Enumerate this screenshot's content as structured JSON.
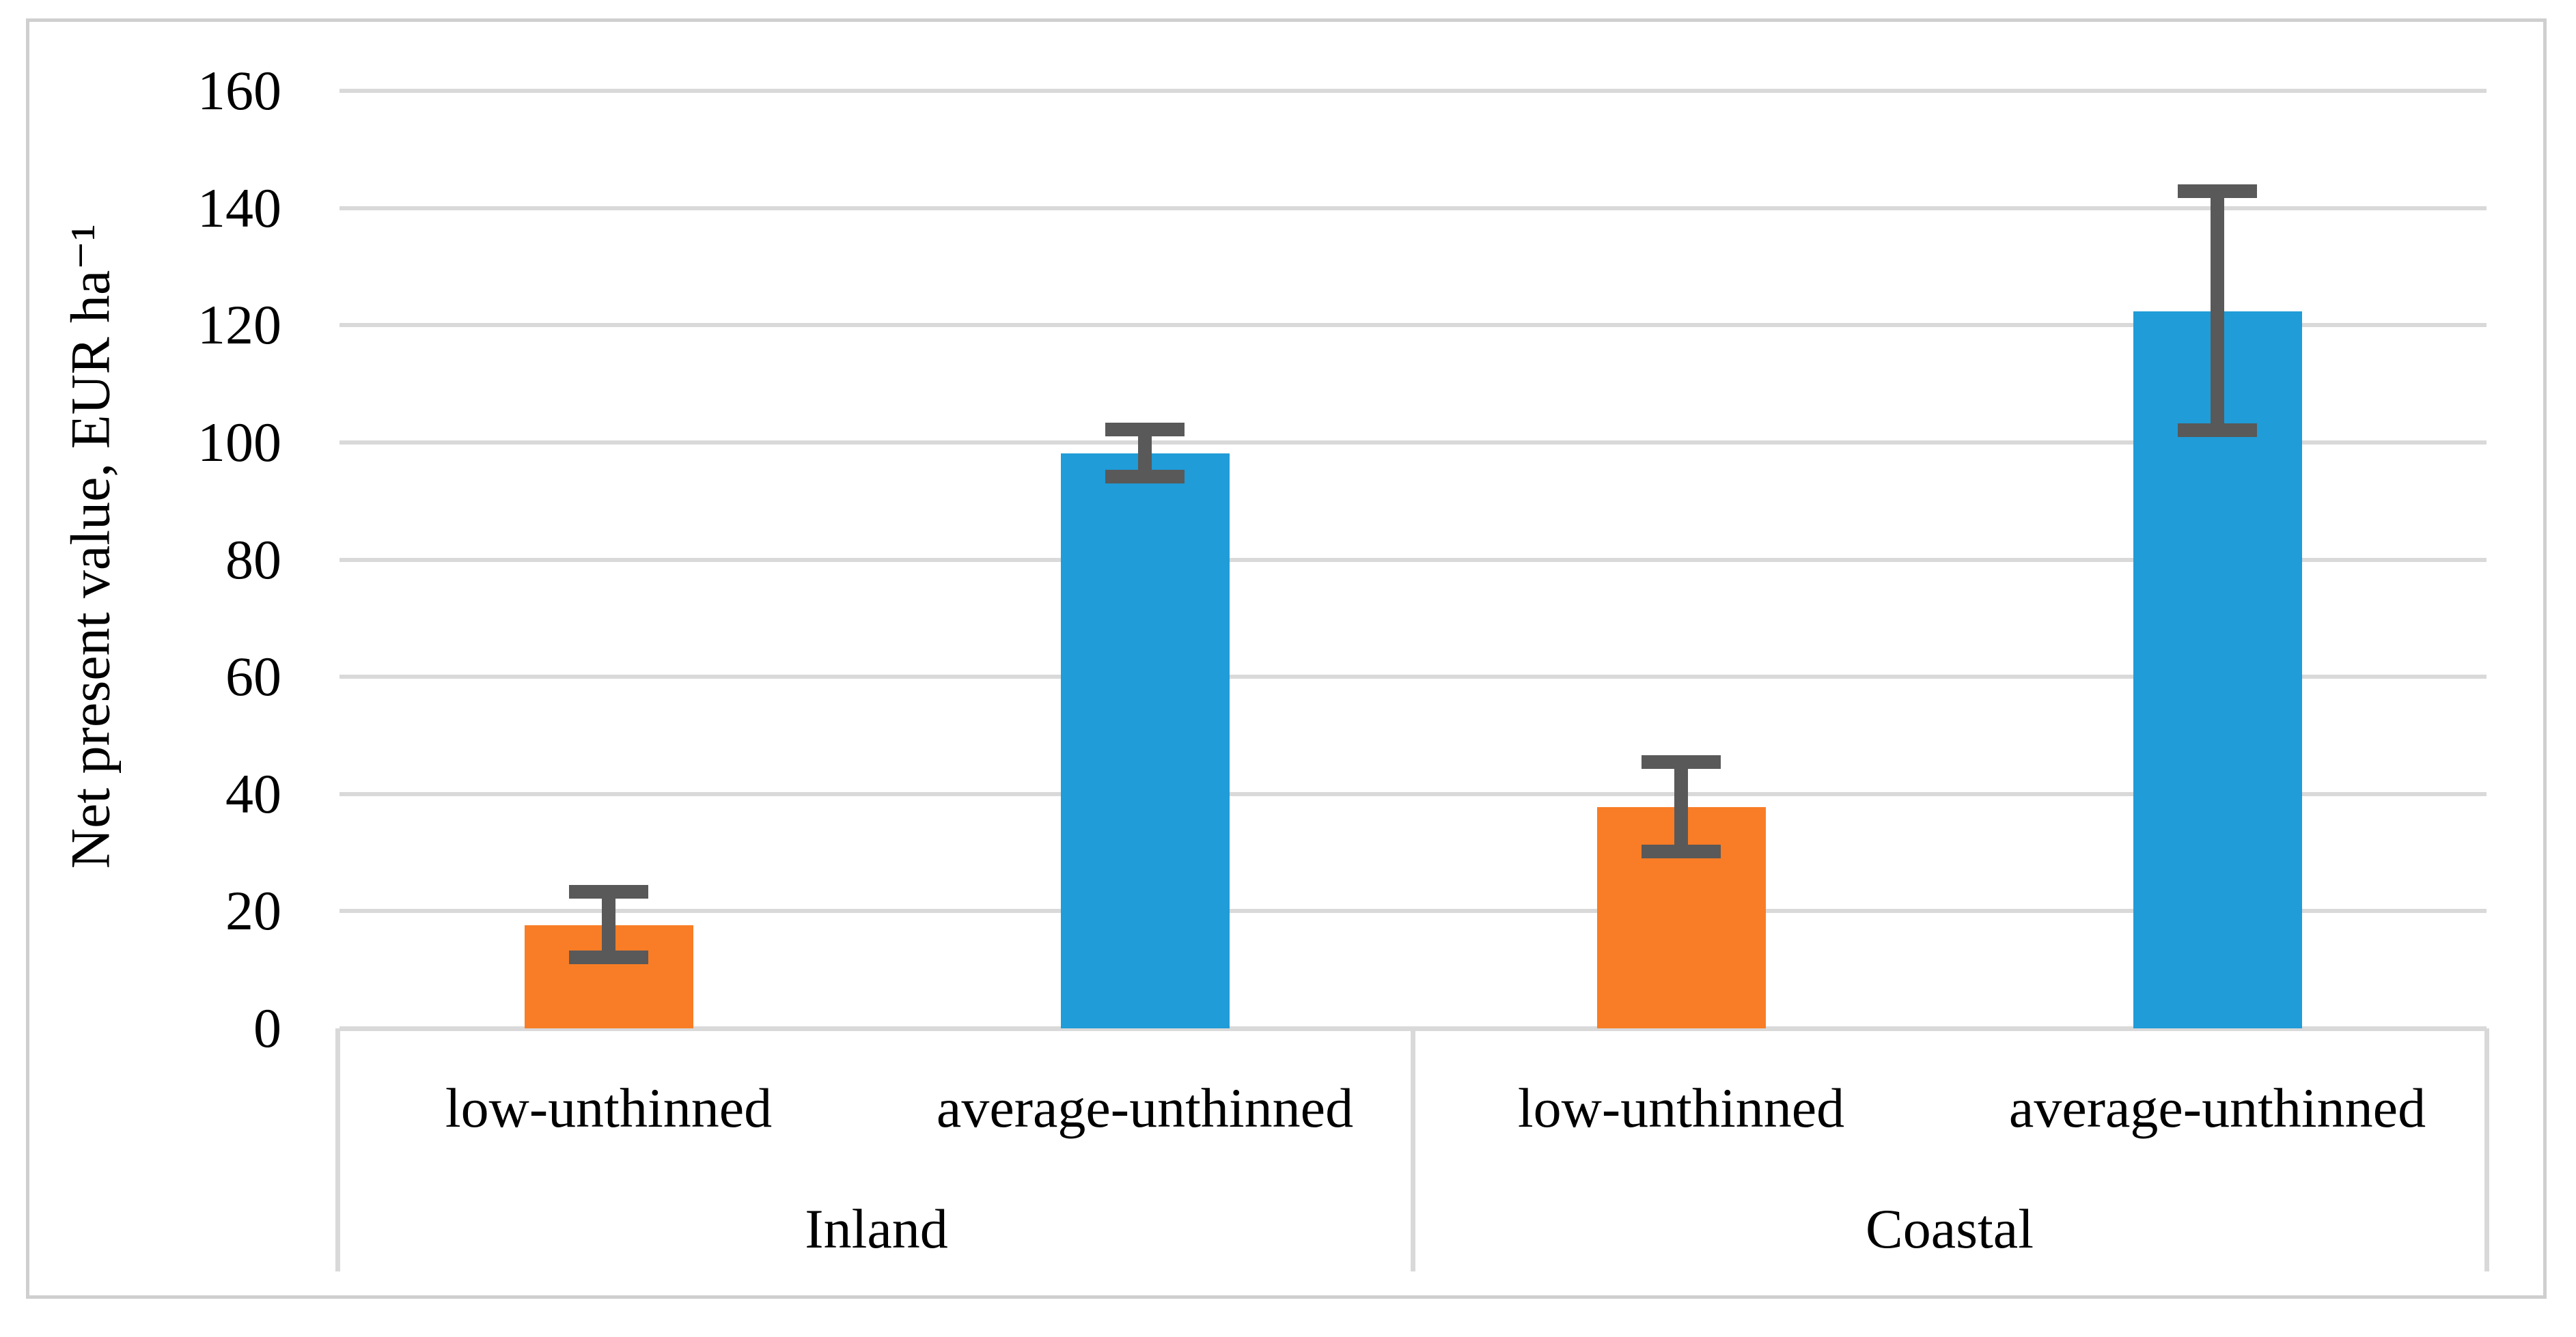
{
  "figure": {
    "background": "#ffffff",
    "frame_border_color": "#cfcfcf"
  },
  "chart_data": {
    "type": "bar",
    "title": "",
    "xlabel": "",
    "ylabel": "Net present value, EUR ha⁻¹",
    "ylim": [
      0,
      160
    ],
    "ytick_step": 20,
    "ytick_labels": [
      "0",
      "20",
      "40",
      "60",
      "80",
      "100",
      "120",
      "140",
      "160"
    ],
    "grid": "horizontal",
    "legend_position": "none",
    "gridline_color": "#d9d9d9",
    "axis_line_color": "#d9d9d9",
    "error_bar_color": "#595959",
    "groups": [
      {
        "label": "Inland",
        "bars": [
          {
            "category": "low-unthinned",
            "value": 17.6,
            "error_low": 12.1,
            "error_high": 23.3,
            "color": "#f87d26"
          },
          {
            "category": "average-unthinned",
            "value": 98.1,
            "error_low": 94.2,
            "error_high": 102.2,
            "color": "#209cd8"
          }
        ]
      },
      {
        "label": "Coastal",
        "bars": [
          {
            "category": "low-unthinned",
            "value": 37.8,
            "error_low": 30.2,
            "error_high": 45.5,
            "color": "#f87d26"
          },
          {
            "category": "average-unthinned",
            "value": 122.4,
            "error_low": 102.1,
            "error_high": 142.9,
            "color": "#209cd8"
          }
        ]
      }
    ]
  }
}
